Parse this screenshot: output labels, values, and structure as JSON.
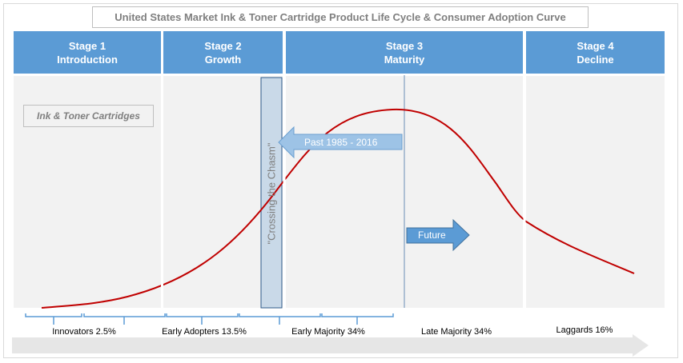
{
  "title": "United States Market Ink & Toner Cartridge Product Life Cycle & Consumer Adoption Curve",
  "stages": [
    {
      "name": "Stage 1",
      "phase": "Introduction"
    },
    {
      "name": "Stage 2",
      "phase": "Growth"
    },
    {
      "name": "Stage 3",
      "phase": "Maturity"
    },
    {
      "name": "Stage 4",
      "phase": "Decline"
    }
  ],
  "product_label": "Ink & Toner  Cartridges",
  "chasm_label": "\"Crossing the Chasm\"",
  "past_label": "Past 1985 - 2016",
  "future_label": "Future",
  "segments": [
    "Innovators 2.5%",
    "Early Adopters 13.5%",
    "Early Majority 34%",
    "Late Majority 34%",
    "Laggards 16%"
  ],
  "colors": {
    "header": "#5b9bd5",
    "curve": "#c00000",
    "panel": "#f2f2f2"
  }
}
